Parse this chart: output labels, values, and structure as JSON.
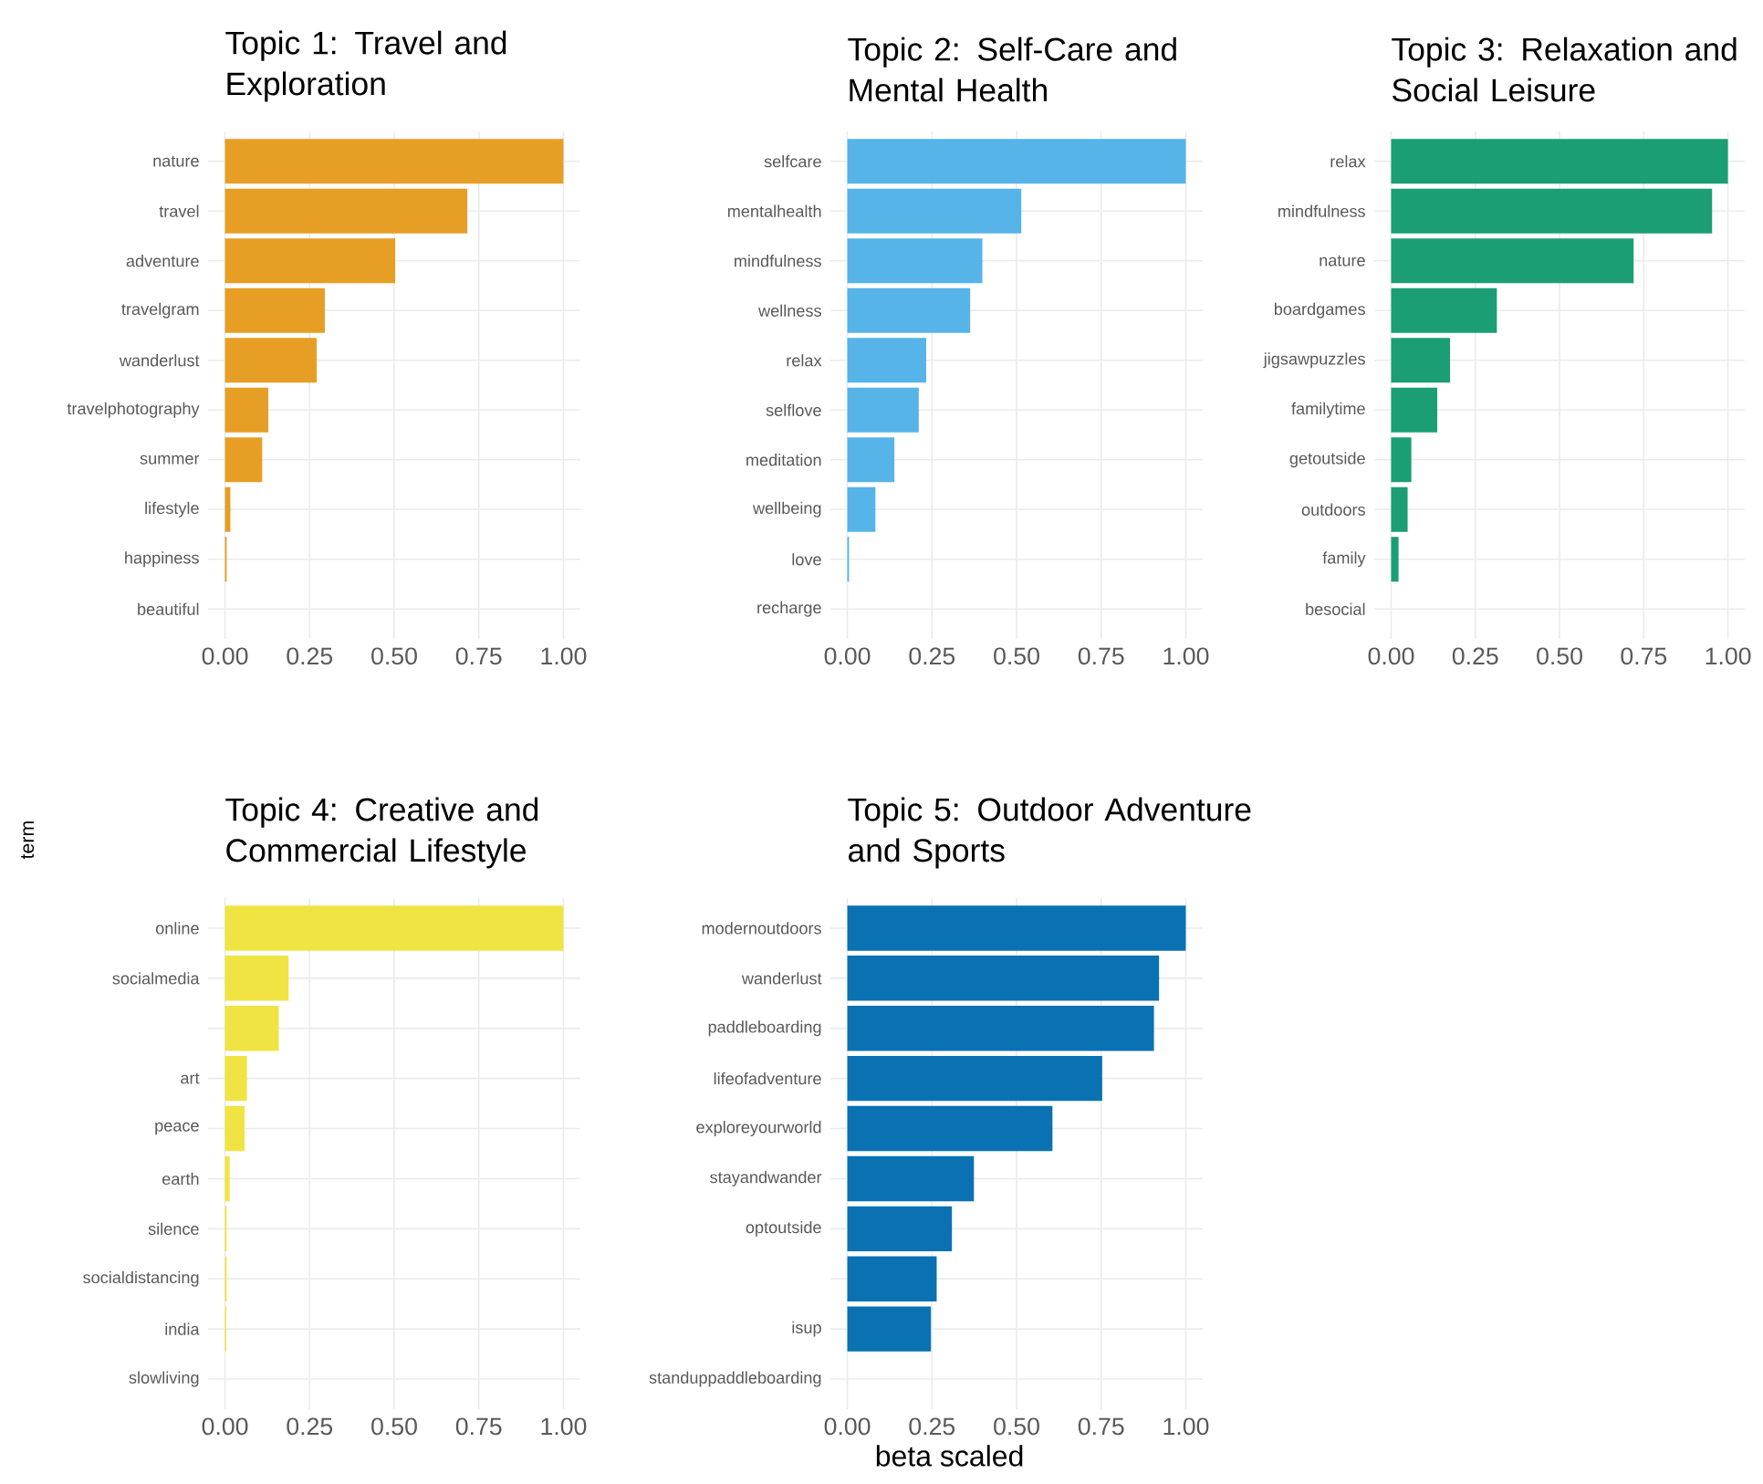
{
  "chart_data": [
    {
      "type": "bar",
      "orientation": "horizontal",
      "title": "Topic 1: Travel and Exploration",
      "categories": [
        "nature",
        "travel",
        "adventure",
        "travelgram",
        "wanderlust",
        "travelphotography",
        "summer",
        "lifestyle",
        "happiness",
        "beautiful"
      ],
      "values": [
        1.0,
        0.716,
        0.503,
        0.295,
        0.271,
        0.128,
        0.11,
        0.016,
        0.005,
        0
      ],
      "color": "#e69f24",
      "xlim": [
        -0.05,
        1.05
      ],
      "xticks": [
        {
          "value": 0,
          "label": "0.00"
        },
        {
          "value": 0.25,
          "label": "0.25"
        },
        {
          "value": 0.5,
          "label": "0.50"
        },
        {
          "value": 0.75,
          "label": "0.75"
        },
        {
          "value": 1,
          "label": "1.00"
        }
      ],
      "grid": true
    },
    {
      "type": "bar",
      "orientation": "horizontal",
      "title": "Topic 2: Self-Care and Mental Health",
      "categories": [
        "selfcare",
        "mentalhealth",
        "mindfulness",
        "wellness",
        "relax",
        "selflove",
        "meditation",
        "wellbeing",
        "love",
        "recharge"
      ],
      "values": [
        1.0,
        0.514,
        0.399,
        0.363,
        0.233,
        0.211,
        0.139,
        0.083,
        0.005,
        0
      ],
      "color": "#56b4e9",
      "xlim": [
        -0.05,
        1.05
      ],
      "xticks": [
        {
          "value": 0,
          "label": "0.00"
        },
        {
          "value": 0.25,
          "label": "0.25"
        },
        {
          "value": 0.5,
          "label": "0.50"
        },
        {
          "value": 0.75,
          "label": "0.75"
        },
        {
          "value": 1,
          "label": "1.00"
        }
      ],
      "grid": true
    },
    {
      "type": "bar",
      "orientation": "horizontal",
      "title": "Topic 3: Relaxation and Social Leisure",
      "categories": [
        "relax",
        "mindfulness",
        "nature",
        "boardgames",
        "jigsawpuzzles",
        "familytime",
        "getoutside",
        "outdoors",
        "family",
        "besocial"
      ],
      "values": [
        1.0,
        0.953,
        0.72,
        0.314,
        0.175,
        0.137,
        0.06,
        0.049,
        0.022,
        0
      ],
      "color": "#1b9e74",
      "xlim": [
        -0.05,
        1.05
      ],
      "xticks": [
        {
          "value": 0,
          "label": "0.00"
        },
        {
          "value": 0.25,
          "label": "0.25"
        },
        {
          "value": 0.5,
          "label": "0.50"
        },
        {
          "value": 0.75,
          "label": "0.75"
        },
        {
          "value": 1,
          "label": "1.00"
        }
      ],
      "grid": true
    },
    {
      "type": "bar",
      "orientation": "horizontal",
      "title": "Topic 4: Creative and Commercial Lifestyle",
      "ylabel": "term",
      "categories": [
        "online",
        "socialmedia",
        null,
        "art",
        "peace",
        "earth",
        "silence",
        "socialdistancing",
        "india",
        "slowliving"
      ],
      "values": [
        1.0,
        0.188,
        0.159,
        0.065,
        0.058,
        0.014,
        0.005,
        0.005,
        0.004,
        0
      ],
      "color": "#f0e442",
      "xlim": [
        -0.05,
        1.05
      ],
      "xticks": [
        {
          "value": 0,
          "label": "0.00"
        },
        {
          "value": 0.25,
          "label": "0.25"
        },
        {
          "value": 0.5,
          "label": "0.50"
        },
        {
          "value": 0.75,
          "label": "0.75"
        },
        {
          "value": 1,
          "label": "1.00"
        }
      ],
      "grid": true
    },
    {
      "type": "bar",
      "orientation": "horizontal",
      "title": "Topic 5: Outdoor Adventure and Sports",
      "xlabel": "beta scaled",
      "categories": [
        "modernoutdoors",
        "wanderlust",
        "paddleboarding",
        "lifeofadventure",
        "exploreyourworld",
        "stayandwander",
        "optoutside",
        null,
        "isup",
        "standuppaddleboarding"
      ],
      "values": [
        1.0,
        0.921,
        0.906,
        0.753,
        0.606,
        0.374,
        0.309,
        0.264,
        0.247,
        0
      ],
      "color": "#0a72b2",
      "xlim": [
        -0.05,
        1.05
      ],
      "xticks": [
        {
          "value": 0,
          "label": "0.00"
        },
        {
          "value": 0.25,
          "label": "0.25"
        },
        {
          "value": 0.5,
          "label": "0.50"
        },
        {
          "value": 0.75,
          "label": "0.75"
        },
        {
          "value": 1,
          "label": "1.00"
        }
      ],
      "grid": true
    }
  ]
}
